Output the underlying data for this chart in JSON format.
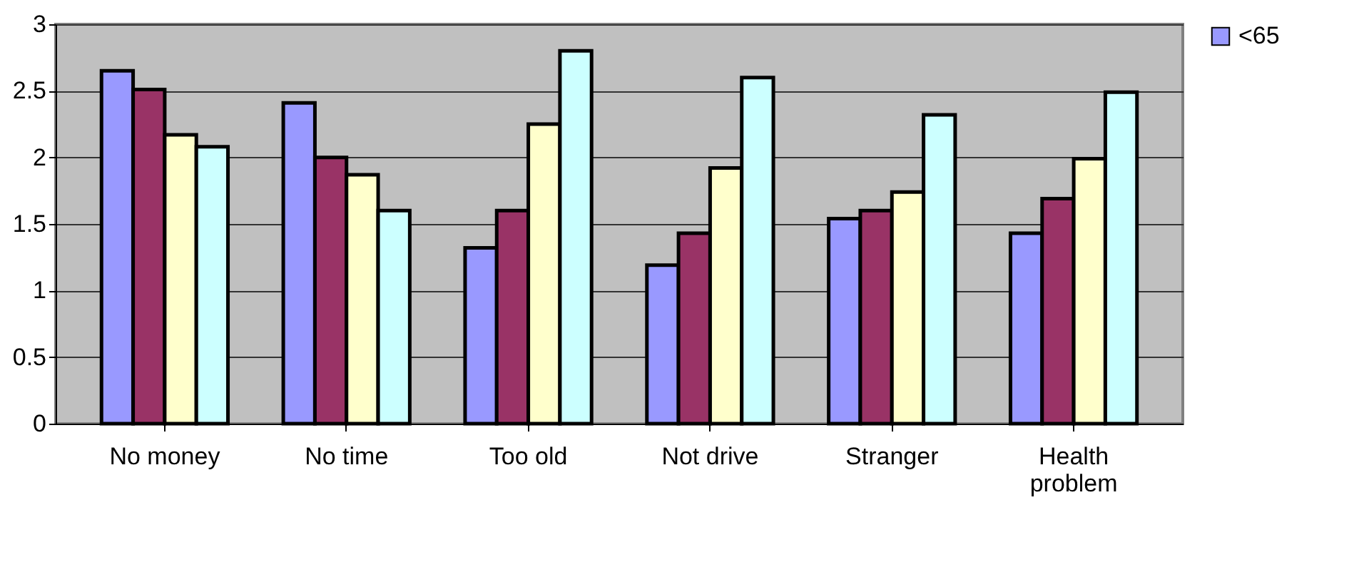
{
  "chart_data": {
    "type": "bar",
    "categories": [
      "No money",
      "No time",
      "Too old",
      "Not drive",
      "Stranger",
      "Health problem"
    ],
    "series": [
      {
        "name": "<65",
        "color": "#9999ff",
        "values": [
          2.65,
          2.41,
          1.32,
          1.19,
          1.54,
          1.43
        ]
      },
      {
        "color": "#993366",
        "values": [
          2.51,
          2.0,
          1.6,
          1.43,
          1.6,
          1.69
        ]
      },
      {
        "color": "#ffffcc",
        "values": [
          2.17,
          1.87,
          2.25,
          1.92,
          1.74,
          1.99
        ]
      },
      {
        "color": "#ccffff",
        "values": [
          2.08,
          1.6,
          2.8,
          2.6,
          2.32,
          2.49
        ]
      }
    ],
    "ylim": [
      0,
      3
    ],
    "yticks": [
      0,
      0.5,
      1,
      1.5,
      2,
      2.5,
      3
    ],
    "grid": "y",
    "legend": "right"
  }
}
